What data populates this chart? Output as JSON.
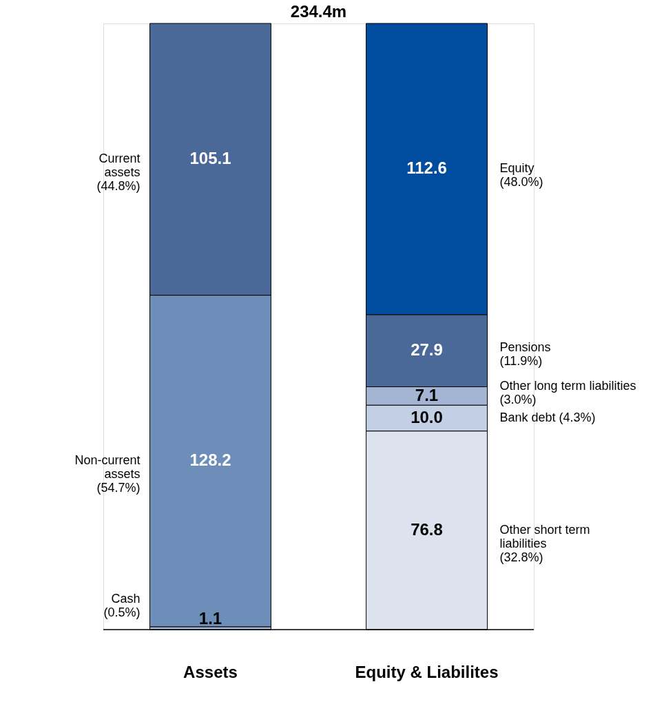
{
  "chart_data": {
    "type": "bar",
    "title": "234.4m",
    "categories": [
      "Assets",
      "Equity & Liabilites"
    ],
    "stacked": true,
    "series": [
      {
        "name": "Cash\n(0.5%)",
        "color": "#a9bcd9",
        "values": [
          1.1,
          null
        ],
        "value_labels": [
          "1.1",
          null
        ]
      },
      {
        "name": "Non-current\nassets\n(54.7%)",
        "color": "#6e8eba",
        "values": [
          128.2,
          null
        ],
        "value_labels": [
          "128.2",
          null
        ]
      },
      {
        "name": "Current\nassets\n(44.8%)",
        "color": "#4a6999",
        "values": [
          105.1,
          null
        ],
        "value_labels": [
          "105.1",
          null
        ]
      },
      {
        "name": "Other short term\nliabilities\n(32.8%)",
        "color": "#dce3ef",
        "values": [
          null,
          76.8
        ],
        "value_labels": [
          null,
          "76.8"
        ]
      },
      {
        "name": "Bank debt (4.3%)",
        "color": "#c3cfe4",
        "values": [
          null,
          10.0
        ],
        "value_labels": [
          null,
          "10.0"
        ]
      },
      {
        "name": "Other long term liabilities\n(3.0%)",
        "color": "#a3b5d3",
        "values": [
          null,
          7.1
        ],
        "value_labels": [
          null,
          "7.1"
        ]
      },
      {
        "name": "Pensions\n(11.9%)",
        "color": "#4a6999",
        "values": [
          null,
          27.9
        ],
        "value_labels": [
          null,
          "27.9"
        ]
      },
      {
        "name": "Equity\n(48.0%)",
        "color": "#004c9e",
        "values": [
          null,
          112.6
        ],
        "value_labels": [
          null,
          "112.6"
        ]
      }
    ]
  }
}
